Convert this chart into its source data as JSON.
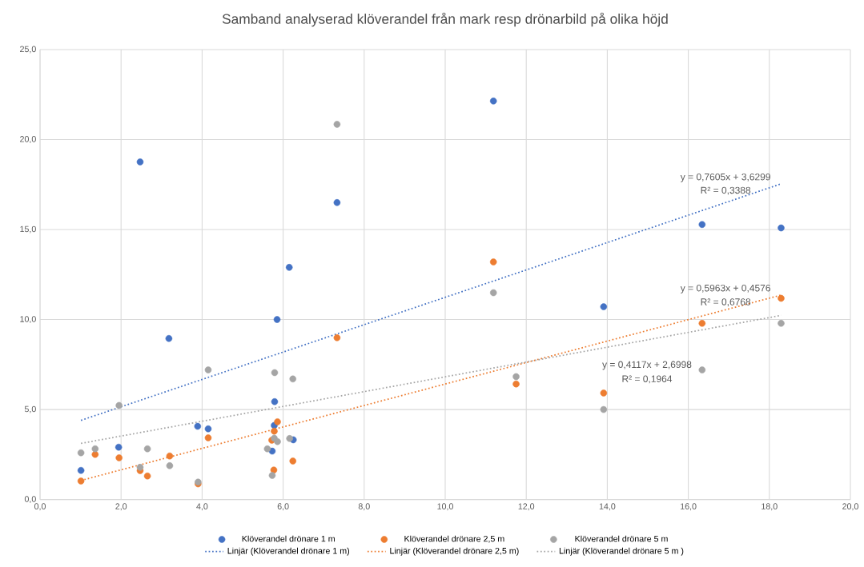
{
  "chart_data": {
    "type": "scatter",
    "title": "Samband  analyserad klöverandel från mark resp drönarbild på olika höjd",
    "xlim": [
      0,
      20
    ],
    "ylim": [
      0,
      25
    ],
    "xticks": [
      {
        "value": 0,
        "label": "0,0"
      },
      {
        "value": 2,
        "label": "2,0"
      },
      {
        "value": 4,
        "label": "4,0"
      },
      {
        "value": 6,
        "label": "6,0"
      },
      {
        "value": 8,
        "label": "8,0"
      },
      {
        "value": 10,
        "label": "10,0"
      },
      {
        "value": 12,
        "label": "12,0"
      },
      {
        "value": 14,
        "label": "14,0"
      },
      {
        "value": 16,
        "label": "16,0"
      },
      {
        "value": 18,
        "label": "18,0"
      },
      {
        "value": 20,
        "label": "20,0"
      }
    ],
    "yticks": [
      {
        "value": 0,
        "label": "0,0"
      },
      {
        "value": 5,
        "label": "5,0"
      },
      {
        "value": 10,
        "label": "10,0"
      },
      {
        "value": 15,
        "label": "15,0"
      },
      {
        "value": 20,
        "label": "20,0"
      },
      {
        "value": 25,
        "label": "25,0"
      }
    ],
    "grid": true,
    "legend": "bottom",
    "series": [
      {
        "name": "Klöverandel drönare 1 m",
        "color": "#4472c4",
        "marker": "circle",
        "x": [
          1.01,
          1.94,
          2.47,
          3.18,
          3.89,
          4.15,
          5.79,
          5.78,
          5.73,
          6.25,
          5.85,
          6.15,
          7.33,
          11.19,
          13.91,
          16.34,
          18.29
        ],
        "values": [
          1.62,
          2.91,
          18.76,
          8.95,
          4.07,
          3.93,
          5.44,
          4.12,
          2.69,
          3.32,
          10.0,
          12.9,
          16.5,
          22.14,
          10.71,
          15.28,
          15.09
        ]
      },
      {
        "name": "Klöverandel drönare 2,5 m",
        "color": "#ed7d31",
        "marker": "circle",
        "x": [
          1.01,
          1.36,
          1.95,
          2.47,
          2.65,
          3.2,
          3.9,
          4.15,
          5.86,
          5.78,
          5.72,
          5.77,
          6.24,
          7.33,
          11.19,
          11.75,
          13.91,
          16.34,
          18.29
        ],
        "values": [
          1.03,
          2.51,
          2.32,
          1.61,
          1.31,
          2.42,
          0.87,
          3.43,
          4.32,
          3.8,
          3.3,
          1.64,
          2.14,
          8.99,
          13.2,
          6.42,
          5.92,
          9.79,
          11.18
        ]
      },
      {
        "name": "Klöverandel drönare 5 m",
        "color": "#a5a5a5",
        "marker": "circle",
        "x": [
          1.01,
          1.36,
          1.95,
          2.65,
          2.47,
          3.2,
          3.9,
          4.15,
          5.79,
          6.24,
          5.61,
          5.78,
          5.86,
          5.73,
          6.16,
          7.33,
          11.19,
          11.75,
          13.91,
          16.34,
          18.29
        ],
        "values": [
          2.6,
          2.82,
          5.23,
          2.82,
          1.79,
          1.88,
          0.97,
          7.2,
          7.05,
          6.7,
          2.82,
          3.41,
          3.22,
          1.34,
          3.39,
          20.85,
          11.49,
          6.83,
          5.0,
          7.2,
          9.79
        ]
      },
      {
        "name": "Linjär (Klöverandel drönare 1 m)",
        "color": "#4472c4",
        "type": "line",
        "marker": "none",
        "line_style": "dotted",
        "x": [
          1.01,
          18.29
        ],
        "values": [
          4.4,
          17.54
        ]
      },
      {
        "name": "Linjär (Klöverandel drönare 2,5 m)",
        "color": "#ed7d31",
        "type": "line",
        "marker": "none",
        "line_style": "dotted",
        "x": [
          1.01,
          18.29
        ],
        "values": [
          1.06,
          11.36
        ]
      },
      {
        "name": "Linjär (Klöverandel drönare 5 m )",
        "color": "#a5a5a5",
        "type": "line",
        "marker": "none",
        "line_style": "dotted",
        "x": [
          1.01,
          18.29
        ],
        "values": [
          3.12,
          10.23
        ]
      }
    ],
    "annotations": [
      "y = 0,7605x + 3,6299",
      "R² = 0,3388",
      "y = 0,5963x + 0,4576",
      "R² = 0,6768",
      "y = 0,4117x + 2,6998",
      "R² = 0,1964"
    ]
  }
}
